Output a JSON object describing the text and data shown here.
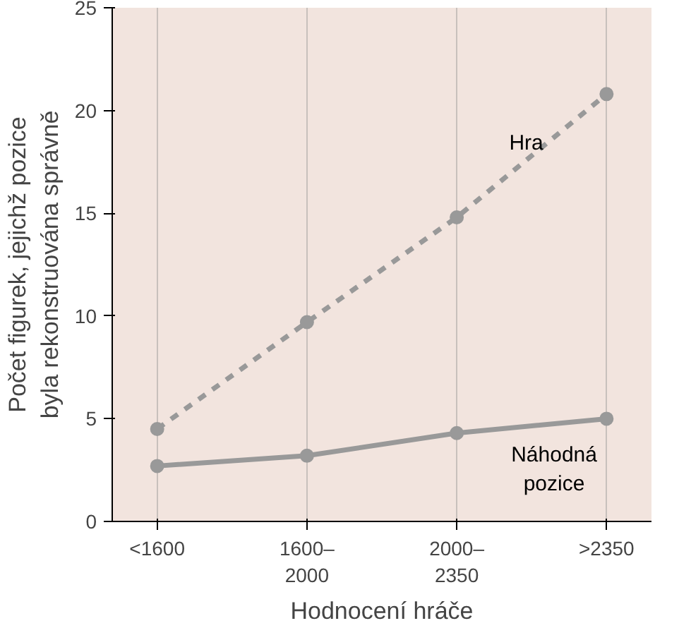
{
  "chart_data": {
    "type": "line",
    "xlabel": "Hodnocení hráče",
    "ylabel": "Počet figurek, jejichž pozice\nbyla rekonstruována správně",
    "categories": [
      "<1600",
      "1600–\n2000",
      "2000–\n2350",
      ">2350"
    ],
    "series": [
      {
        "name": "Hra",
        "color": "#999999",
        "values": [
          4.5,
          9.7,
          14.8,
          20.8
        ],
        "line_style": "dashed"
      },
      {
        "name": "Náhodná pozice",
        "color": "#999999",
        "values": [
          2.7,
          3.2,
          4.3,
          5.0
        ],
        "line_style": "solid"
      }
    ],
    "ylim": [
      0,
      25
    ],
    "yticks": [
      0,
      5,
      10,
      15,
      20,
      25
    ],
    "grid": "x",
    "legend": false,
    "marker": "circle"
  }
}
